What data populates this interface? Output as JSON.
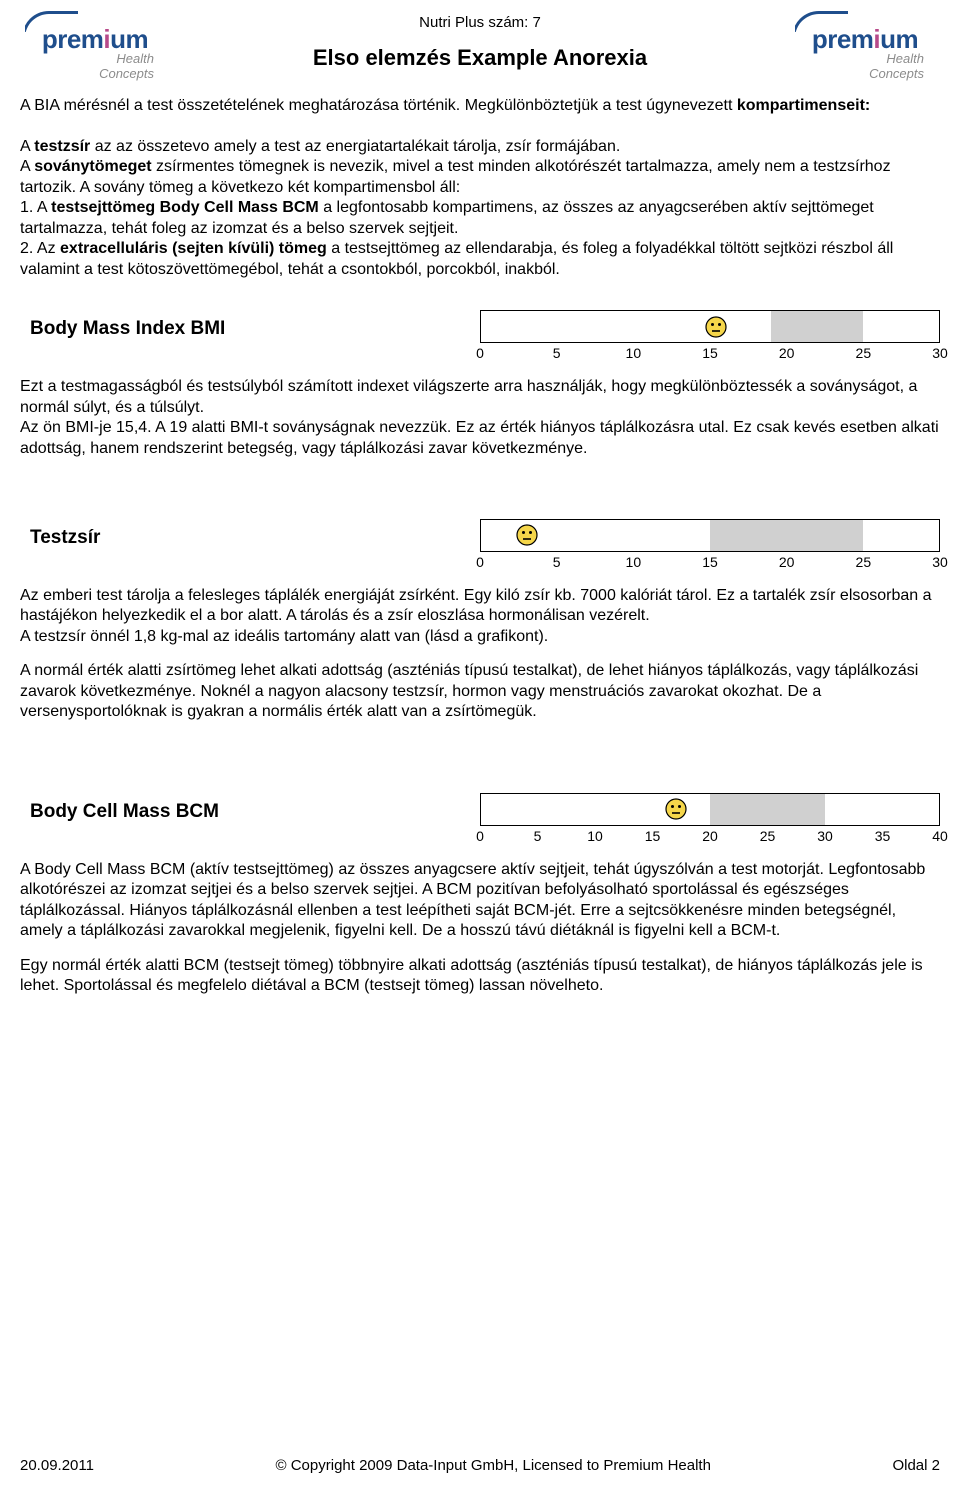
{
  "header": {
    "nutri_label": "Nutri Plus szám: 7",
    "title": "Elso elemzés  Example Anorexia",
    "logo_word": "premium",
    "logo_sub1": "Health",
    "logo_sub2": "Concepts"
  },
  "intro": {
    "p1_a": "A BIA mérésnél a test összetételének meghatározása történik. Megkülönböztetjük a test úgynevezett ",
    "p1_b": "kompartimenseit:",
    "p2_a": "A ",
    "p2_b": "testzsír",
    "p2_c": " az az összetevo amely a test az energiatartalékait tárolja, zsír formájában.",
    "p3_a": "A ",
    "p3_b": "soványtömeget",
    "p3_c": " zsírmentes tömegnek is nevezik, mivel a test minden alkotórészét tartalmazza, amely nem a testzsírhoz tartozik. A sovány tömeg a következo két kompartimensbol áll:",
    "p4_a": "1. A  ",
    "p4_b": "testsejttömeg   Body Cell Mass BCM",
    "p4_c": " a legfontosabb kompartimens, az összes az anyagcserében aktív sejttömeget tartalmazza, tehát foleg az izomzat és a belso szervek sejtjeit.",
    "p5_a": "2. Az  ",
    "p5_b": "extracelluláris (sejten kívüli) tömeg",
    "p5_c": " a testsejttömeg az ellendarabja, és foleg a folyadékkal töltött sejtközi részbol áll valamint a test kötoszövettömegébol, tehát a csontokból, porcokból, inakból."
  },
  "bmi": {
    "title": "Body Mass Index BMI",
    "scale": {
      "min": 0,
      "max": 30,
      "step": 5,
      "norm_start": 19,
      "norm_end": 25,
      "marker": 15.4,
      "ticks": [
        "0",
        "5",
        "10",
        "15",
        "20",
        "25",
        "30"
      ]
    },
    "text1": "Ezt a testmagasságból és testsúlyból számított indexet világszerte arra használják, hogy megkülönböztessék a soványságot, a normál súlyt, és a túlsúlyt.",
    "text2": "Az ön BMI-je 15,4. A 19 alatti BMI-t soványságnak nevezzük. Ez az érték hiányos táplálkozásra utal. Ez csak kevés esetben alkati adottság, hanem rendszerint betegség, vagy táplálkozási zavar következménye."
  },
  "fat": {
    "title": "Testzsír",
    "scale": {
      "min": 0,
      "max": 30,
      "step": 5,
      "norm_start": 15,
      "norm_end": 25,
      "marker": 3,
      "ticks": [
        "0",
        "5",
        "10",
        "15",
        "20",
        "25",
        "30"
      ]
    },
    "text1": "Az emberi test tárolja a felesleges táplálék energiáját zsírként. Egy kiló zsír kb. 7000 kalóriát tárol. Ez a tartalék zsír elsosorban a hastájékon helyezkedik el a bor alatt. A tárolás és a zsír eloszlása hormonálisan vezérelt.",
    "text2": "A testzsír önnél 1,8 kg-mal az ideális tartomány alatt van (lásd a grafikont).",
    "text3": "A normál érték alatti zsírtömeg lehet alkati adottság (aszténiás típusú testalkat), de lehet hiányos táplálkozás, vagy táplálkozási zavarok következménye. Noknél a nagyon alacsony testzsír, hormon vagy menstruációs zavarokat okozhat. De a versenysportolóknak is gyakran a normális érték alatt van a zsírtömegük."
  },
  "bcm": {
    "title": "Body Cell Mass BCM",
    "scale": {
      "min": 0,
      "max": 40,
      "step": 5,
      "norm_start": 20,
      "norm_end": 30,
      "marker": 17,
      "ticks": [
        "0",
        "5",
        "10",
        "15",
        "20",
        "25",
        "30",
        "35",
        "40"
      ]
    },
    "text1": "A Body Cell Mass BCM (aktív testsejttömeg) az összes anyagcsere aktív sejtjeit, tehát úgyszólván a test motorját. Legfontosabb alkotórészei az izomzat sejtjei és a belso szervek sejtjei. A BCM pozitívan befolyásolható sportolással és egészséges táplálkozással. Hiányos táplálkozásnál ellenben a test leépítheti saját BCM-jét. Erre a sejtcsökkenésre minden betegségnél, amely a táplálkozási zavarokkal megjelenik, figyelni kell. De a hosszú távú diétáknál is figyelni kell a BCM-t.",
    "text2": "Egy normál érték alatti BCM (testsejt tömeg) többnyire alkati adottság (aszténiás típusú testalkat), de hiányos táplálkozás jele is lehet. Sportolással és megfelelo diétával a BCM (testsejt tömeg) lassan növelheto."
  },
  "footer": {
    "date": "20.09.2011",
    "copyright": "© Copyright 2009 Data-Input GmbH, Licensed to Premium Health",
    "page": "Oldal 2"
  },
  "colors": {
    "norm_fill": "#d0d0d0",
    "face_fill": "#f5d64a",
    "face_stroke": "#000000",
    "logo_blue": "#1f4e8c",
    "logo_accent": "#b84a8a"
  }
}
